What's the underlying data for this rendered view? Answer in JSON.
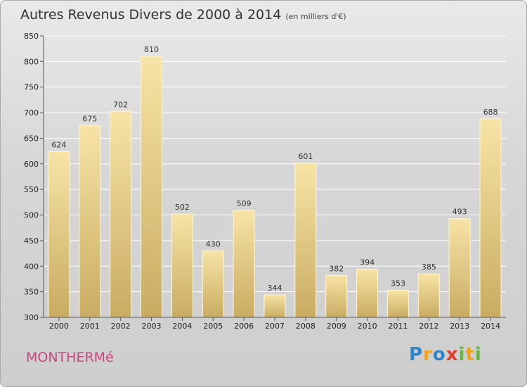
{
  "header": {
    "title": "Autres Revenus Divers de 2000 à 2014",
    "subtitle": "(en milliers d'€)"
  },
  "footer": {
    "town": "MONTHERMé",
    "logo_letters": [
      {
        "ch": "P",
        "color": "#2e86c8"
      },
      {
        "ch": "r",
        "color": "#f2a31b"
      },
      {
        "ch": "o",
        "color": "#2e86c8"
      },
      {
        "ch": "x",
        "color": "#e13b2e"
      },
      {
        "ch": "i",
        "color": "#6ab344"
      },
      {
        "ch": "t",
        "color": "#f2a31b"
      },
      {
        "ch": "i",
        "color": "#6ab344"
      }
    ]
  },
  "chart_data": {
    "type": "bar",
    "title": "Autres Revenus Divers de 2000 à 2014",
    "subtitle": "(en milliers d'€)",
    "categories": [
      "2000",
      "2001",
      "2002",
      "2003",
      "2004",
      "2005",
      "2006",
      "2007",
      "2008",
      "2009",
      "2010",
      "2011",
      "2012",
      "2013",
      "2014"
    ],
    "values": [
      624,
      675,
      702,
      810,
      502,
      430,
      509,
      344,
      601,
      382,
      394,
      353,
      385,
      493,
      688
    ],
    "ylim": [
      300,
      850
    ],
    "yticks": [
      300,
      350,
      400,
      450,
      500,
      550,
      600,
      650,
      700,
      750,
      800,
      850
    ],
    "grid": true,
    "bar_color_light": "#f7e4a6",
    "bar_color_dark": "#c9ac62"
  }
}
